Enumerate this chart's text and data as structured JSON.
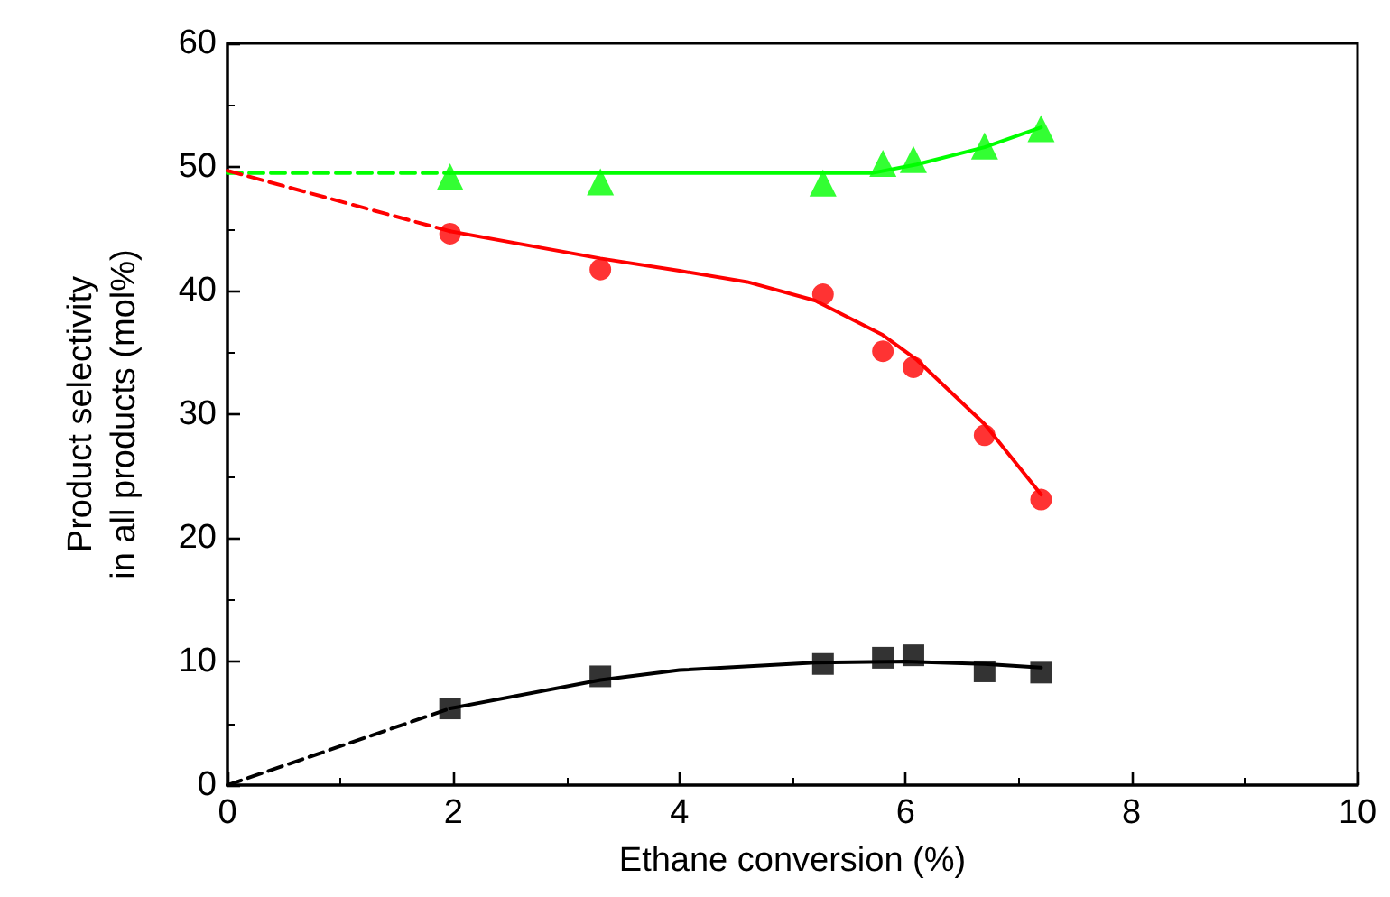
{
  "chart_data": {
    "type": "scatter",
    "xlabel": "Ethane conversion (%)",
    "ylabel": "Product selectivity\nin all products (mol%)",
    "xlim": [
      0,
      10
    ],
    "xticks": [
      0,
      2,
      4,
      6,
      8,
      10
    ],
    "ylim": [
      0,
      60
    ],
    "yticks": [
      0,
      10,
      20,
      30,
      40,
      50,
      60
    ],
    "grid": false,
    "series": [
      {
        "marker": "triangle",
        "color": "#00ff00",
        "x": [
          1.97,
          3.3,
          5.27,
          5.8,
          6.07,
          6.7,
          7.2
        ],
        "values": [
          49.2,
          48.8,
          48.7,
          50.3,
          50.6,
          51.7,
          53.1
        ]
      },
      {
        "marker": "circle",
        "color": "#ff0000",
        "x": [
          1.97,
          3.3,
          5.27,
          5.8,
          6.07,
          6.7,
          7.2
        ],
        "values": [
          44.6,
          41.7,
          39.7,
          35.1,
          33.8,
          28.3,
          23.1
        ]
      },
      {
        "marker": "square",
        "color": "#000000",
        "x": [
          1.97,
          3.3,
          5.27,
          5.8,
          6.07,
          6.7,
          7.2
        ],
        "values": [
          6.2,
          8.8,
          9.8,
          10.3,
          10.5,
          9.2,
          9.1
        ]
      },
      {
        "type": "line",
        "marker": "none",
        "line_style": "dashed",
        "color": "#00ff00",
        "x": [
          0,
          1.97
        ],
        "values": [
          49.5,
          49.5
        ]
      },
      {
        "type": "line",
        "marker": "none",
        "line_style": "solid",
        "color": "#00ff00",
        "x": [
          1.97,
          5.7,
          6.1,
          6.7,
          7.2
        ],
        "values": [
          49.5,
          49.5,
          50.2,
          51.6,
          53.2
        ]
      },
      {
        "type": "line",
        "marker": "none",
        "line_style": "dashed",
        "color": "#ff0000",
        "x": [
          0,
          1.97
        ],
        "values": [
          49.7,
          44.8
        ]
      },
      {
        "type": "line",
        "marker": "none",
        "line_style": "solid",
        "color": "#ff0000",
        "x": [
          1.97,
          3.3,
          4,
          4.6,
          5.2,
          5.8,
          6.1,
          6.7,
          7.2
        ],
        "values": [
          44.8,
          42.6,
          41.6,
          40.7,
          39.2,
          36.4,
          34.4,
          29.2,
          23.5
        ]
      },
      {
        "type": "line",
        "marker": "none",
        "line_style": "dashed",
        "color": "#000000",
        "x": [
          0,
          1.97
        ],
        "values": [
          0,
          6.2
        ]
      },
      {
        "type": "line",
        "marker": "none",
        "line_style": "solid",
        "color": "#000000",
        "x": [
          1.97,
          3.3,
          4,
          5.2,
          6,
          6.7,
          7.2
        ],
        "values": [
          6.2,
          8.5,
          9.3,
          9.9,
          10,
          9.8,
          9.5
        ]
      }
    ]
  }
}
